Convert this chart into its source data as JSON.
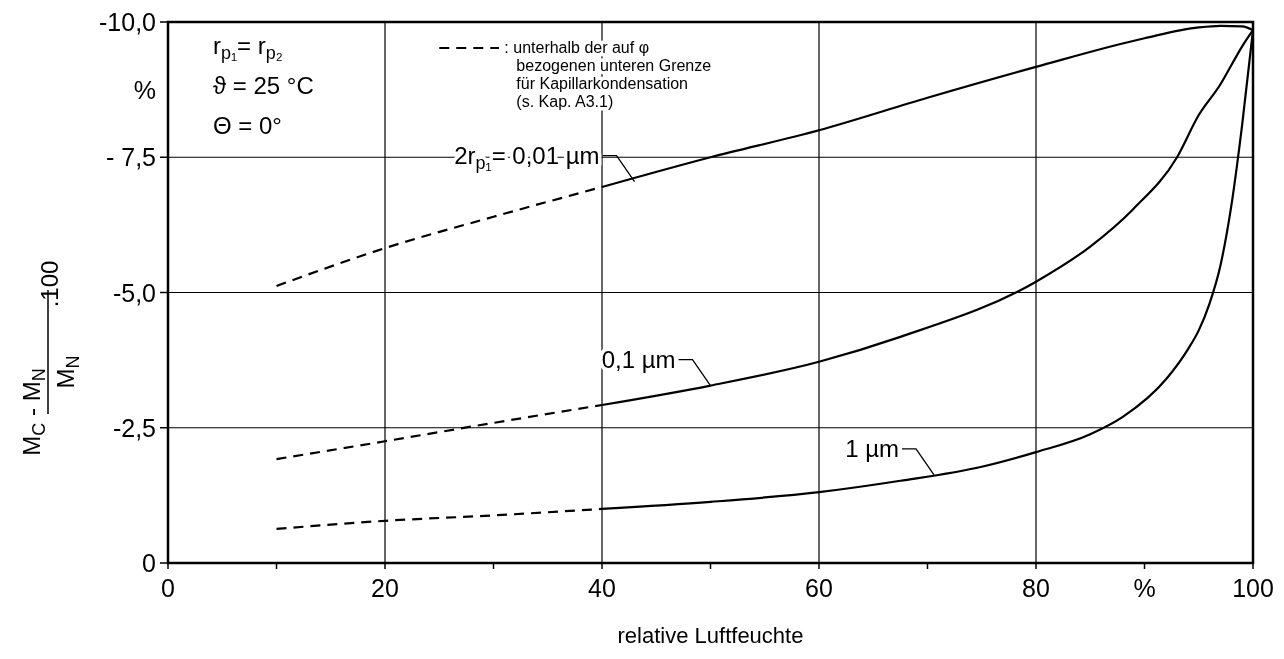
{
  "chart_data": {
    "type": "line",
    "xlabel": "relative Luftfeuchte",
    "ylabel": "M$_{C}$ - M$_{N}$  M$_{N}$  .100",
    "xlim": [
      0,
      100
    ],
    "ylim": [
      0,
      -10
    ],
    "xticks": [
      0,
      {
        "value": 10,
        "label": null
      },
      20,
      {
        "value": 30,
        "label": null
      },
      40,
      {
        "value": 50,
        "label": null
      },
      60,
      {
        "value": 70,
        "label": null
      },
      80,
      {
        "value": 90,
        "label": "%"
      },
      100
    ],
    "yticks": [
      {
        "value": 0,
        "label": "0"
      },
      {
        "value": -2.5,
        "label": "-2,5"
      },
      {
        "value": -5,
        "label": "-5,0"
      },
      {
        "value": -7.5,
        "label": "- 7,5"
      },
      {
        "value": -8.75,
        "label": "%"
      },
      {
        "value": -10,
        "label": "-10,0"
      }
    ],
    "grid": true,
    "marker": "none",
    "series": [
      {
        "color": "#000000",
        "line_style": "dashed",
        "x": [
          10,
          20,
          30,
          40
        ],
        "values": [
          -5.12,
          -5.82,
          -6.4,
          -6.95
        ]
      },
      {
        "color": "#000000",
        "line_style": "solid",
        "x": [
          40,
          50,
          60,
          70,
          80,
          90,
          95,
          97,
          99,
          100
        ],
        "values": [
          -6.95,
          -7.5,
          -8.0,
          -8.6,
          -9.17,
          -9.7,
          -9.9,
          -9.93,
          -9.92,
          -9.85
        ]
      },
      {
        "color": "#000000",
        "line_style": "dashed",
        "x": [
          10,
          20,
          30,
          40
        ],
        "values": [
          -1.92,
          -2.25,
          -2.59,
          -2.92
        ]
      },
      {
        "color": "#000000",
        "line_style": "solid",
        "x": [
          40,
          50,
          60,
          67.5,
          80,
          85,
          89,
          93,
          95,
          97,
          98,
          99,
          100
        ],
        "values": [
          -2.92,
          -3.28,
          -3.72,
          -4.18,
          -5.2,
          -5.85,
          -6.55,
          -7.5,
          -8.28,
          -8.85,
          -9.2,
          -9.55,
          -9.85
        ]
      },
      {
        "color": "#000000",
        "line_style": "dashed",
        "x": [
          10,
          20,
          30,
          40
        ],
        "values": [
          -0.63,
          -0.78,
          -0.88,
          -1.0
        ]
      },
      {
        "color": "#000000",
        "line_style": "solid",
        "x": [
          40,
          50,
          60,
          67.5,
          75,
          80,
          85,
          88,
          92,
          94,
          95,
          96,
          97,
          98,
          99,
          100
        ],
        "values": [
          -1.0,
          -1.13,
          -1.31,
          -1.52,
          -1.78,
          -2.05,
          -2.38,
          -2.7,
          -3.4,
          -3.95,
          -4.3,
          -4.8,
          -5.5,
          -6.6,
          -8.1,
          -9.85
        ]
      }
    ],
    "annotations": [
      "r$_{p₁}$= r$_{p₂}$",
      "ϑ = 25 °C",
      "Θ = 0°",
      ": unterhalb der auf φ\nbezogenen unteren Grenze\nfür Kapillarkondensation\n(s. Kap. A3.1)",
      {
        "text": "2r$_{p₁}$= 0,01 µm",
        "x": 43,
        "y": -7.05
      },
      {
        "text": "0,1 µm",
        "x": 50,
        "y": -3.28
      },
      {
        "text": "1 µm",
        "x": 70.6,
        "y": -1.63
      }
    ]
  }
}
